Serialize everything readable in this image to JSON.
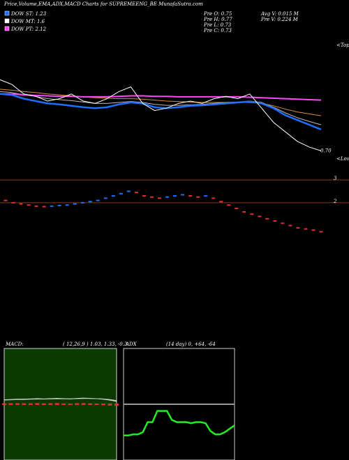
{
  "chart_data": [
    {
      "type": "price",
      "title": "Price,Volume,EMA,ADX,MACD Charts for SUPREMEENG_BE MunafaSutra.com",
      "legend": [
        {
          "label": "DOW ST: 1.23",
          "color": "#1e6fff"
        },
        {
          "label": "DOW MT: 1.6",
          "color": "#ffffff"
        },
        {
          "label": "DOW PT: 2.12",
          "color": "#ff44ff"
        }
      ],
      "info": [
        "Pre  O: 0.75",
        "Pre  H: 0.77",
        "Pre  L: 0.73",
        "Pre  C: 0.73",
        "Avg  V: 0.015  M",
        "Pre  V: 0.224  M"
      ],
      "annotations": [
        "<Tops",
        "<Lows"
      ],
      "price_label": {
        "value": 0.7,
        "label": "0.70"
      },
      "ylim": [
        0.5,
        3.0
      ],
      "series": [
        {
          "color": "#d98c3a",
          "values": [
            2.0,
            1.98,
            1.95,
            1.93,
            1.9,
            1.88,
            1.86,
            1.84,
            1.82,
            1.81,
            1.8,
            1.8,
            1.79,
            1.77,
            1.75,
            1.74,
            1.73,
            1.72,
            1.72,
            1.72,
            1.72,
            1.72,
            1.7,
            1.65,
            1.58,
            1.52,
            1.48,
            1.44
          ]
        },
        {
          "color": "#bbbbbb",
          "values": [
            1.95,
            1.93,
            1.88,
            1.85,
            1.8,
            1.78,
            1.76,
            1.73,
            1.7,
            1.7,
            1.72,
            1.74,
            1.72,
            1.68,
            1.66,
            1.66,
            1.67,
            1.68,
            1.7,
            1.72,
            1.73,
            1.75,
            1.72,
            1.62,
            1.5,
            1.4,
            1.32,
            1.25
          ]
        },
        {
          "color": "#ff44ff",
          "values": [
            1.9,
            1.9,
            1.88,
            1.87,
            1.86,
            1.85,
            1.85,
            1.84,
            1.84,
            1.84,
            1.85,
            1.86,
            1.86,
            1.85,
            1.85,
            1.84,
            1.84,
            1.84,
            1.84,
            1.84,
            1.84,
            1.83,
            1.82,
            1.81,
            1.8,
            1.79,
            1.78,
            1.77
          ]
        },
        {
          "color": "#1e6fff",
          "values": [
            1.9,
            1.88,
            1.8,
            1.75,
            1.7,
            1.68,
            1.65,
            1.62,
            1.6,
            1.62,
            1.68,
            1.72,
            1.7,
            1.62,
            1.6,
            1.62,
            1.65,
            1.66,
            1.68,
            1.7,
            1.72,
            1.74,
            1.7,
            1.6,
            1.45,
            1.35,
            1.25,
            1.15
          ]
        },
        {
          "color": "#ffffff",
          "values": [
            2.2,
            2.1,
            1.9,
            1.85,
            1.75,
            1.8,
            1.9,
            1.75,
            1.7,
            1.8,
            1.95,
            2.05,
            1.7,
            1.55,
            1.6,
            1.7,
            1.75,
            1.7,
            1.8,
            1.85,
            1.8,
            1.9,
            1.6,
            1.3,
            1.1,
            0.9,
            0.78,
            0.7
          ]
        }
      ]
    },
    {
      "type": "candle",
      "ylim": [
        0.5,
        3.25
      ],
      "yticks": [
        2,
        3
      ],
      "grid_color": "#8b3a1a",
      "values": [
        2.1,
        2.0,
        1.95,
        1.9,
        1.85,
        1.83,
        1.85,
        1.88,
        1.9,
        1.95,
        2.0,
        2.05,
        2.1,
        2.2,
        2.3,
        2.4,
        2.5,
        2.45,
        2.3,
        2.25,
        2.2,
        2.25,
        2.3,
        2.35,
        2.3,
        2.25,
        2.3,
        2.2,
        2.05,
        1.9,
        1.75,
        1.6,
        1.5,
        1.4,
        1.3,
        1.2,
        1.1,
        1.0,
        0.9,
        0.85,
        0.8,
        0.73
      ]
    },
    {
      "type": "macd",
      "title": "MACD:",
      "subtitle": "( 12,26,9 ) 1.03,  1.33,  -0.3",
      "ylim": [
        -20,
        20
      ],
      "background": "#0a3a00",
      "series": [
        {
          "color": "#ffffff",
          "values": [
            1.6,
            1.7,
            1.8,
            1.8,
            1.9,
            2.0,
            1.9,
            2.0,
            2.1,
            2.0,
            1.9,
            2.1,
            2.2,
            2.1,
            2.0,
            1.8,
            1.5,
            1.03
          ]
        },
        {
          "color": "#bbbbbb",
          "values": [
            1.5,
            1.6,
            1.7,
            1.7,
            1.8,
            1.85,
            1.85,
            1.9,
            1.95,
            1.95,
            1.95,
            2.0,
            2.05,
            2.05,
            2.0,
            1.9,
            1.7,
            1.33
          ]
        }
      ],
      "histogram": {
        "color": "#e03030",
        "values": [
          0.1,
          0.1,
          0.1,
          0.1,
          0.1,
          0.15,
          0.05,
          0.1,
          0.15,
          0.05,
          -0.05,
          0.1,
          0.15,
          0.05,
          0.0,
          -0.1,
          -0.2,
          -0.3
        ]
      }
    },
    {
      "type": "adx",
      "title": "ADX",
      "subtitle": "(14  day) 0,  +64,  -64",
      "ylim": [
        0,
        100
      ],
      "reference": 50,
      "reference_color": "#999999",
      "series": [
        {
          "color": "#22ee22",
          "values": [
            22,
            22,
            23,
            23,
            25,
            34,
            34,
            44,
            44,
            44,
            36,
            34,
            34,
            34,
            33,
            34,
            34,
            33,
            26,
            23,
            23,
            25,
            28,
            31
          ]
        }
      ]
    }
  ]
}
